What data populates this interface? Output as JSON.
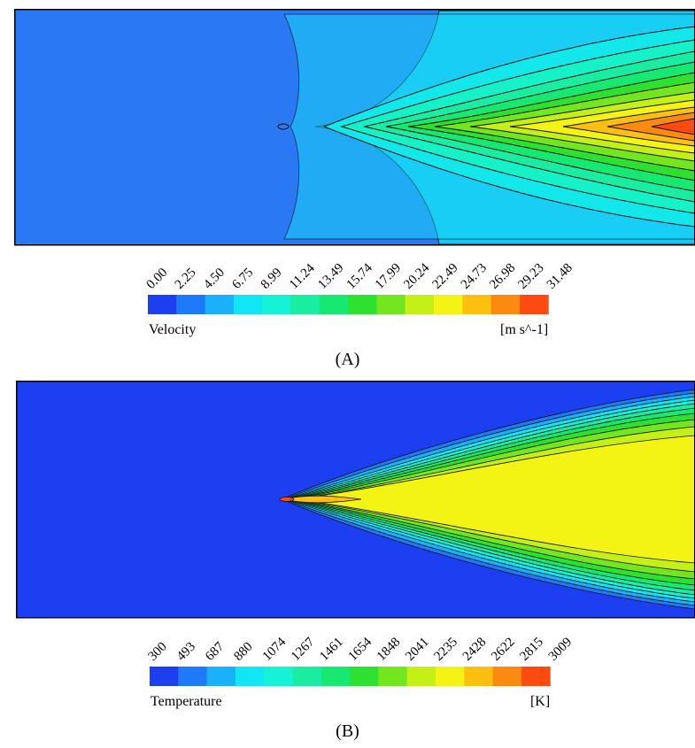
{
  "chart_data": [
    {
      "type": "heatmap",
      "quantity": "Velocity",
      "unit": "[m s^-1]",
      "caption": "(A)",
      "levels": [
        "0.00",
        "2.25",
        "4.50",
        "6.75",
        "8.99",
        "11.24",
        "13.49",
        "15.74",
        "17.99",
        "20.24",
        "22.49",
        "24.73",
        "26.98",
        "29.23",
        "31.48"
      ],
      "colors": [
        "#1e3ff0",
        "#1e7af8",
        "#1ab1fa",
        "#12e5f4",
        "#16f2d6",
        "#1aeca2",
        "#16e872",
        "#2ee030",
        "#74e620",
        "#c4f018",
        "#f4f414",
        "#fec010",
        "#fc8a10",
        "#fc4a10"
      ]
    },
    {
      "type": "heatmap",
      "quantity": "Temperature",
      "unit": "[K]",
      "caption": "(B)",
      "levels": [
        "300",
        "493",
        "687",
        "880",
        "1074",
        "1267",
        "1461",
        "1654",
        "1848",
        "2041",
        "2235",
        "2428",
        "2622",
        "2815",
        "3009"
      ],
      "colors": [
        "#1e3ff0",
        "#1e7af8",
        "#1ab1fa",
        "#12e5f4",
        "#16f2d6",
        "#1aeca2",
        "#16e872",
        "#2ee030",
        "#74e620",
        "#c4f018",
        "#f4f414",
        "#fec010",
        "#fc8a10",
        "#fc4a10"
      ]
    }
  ]
}
